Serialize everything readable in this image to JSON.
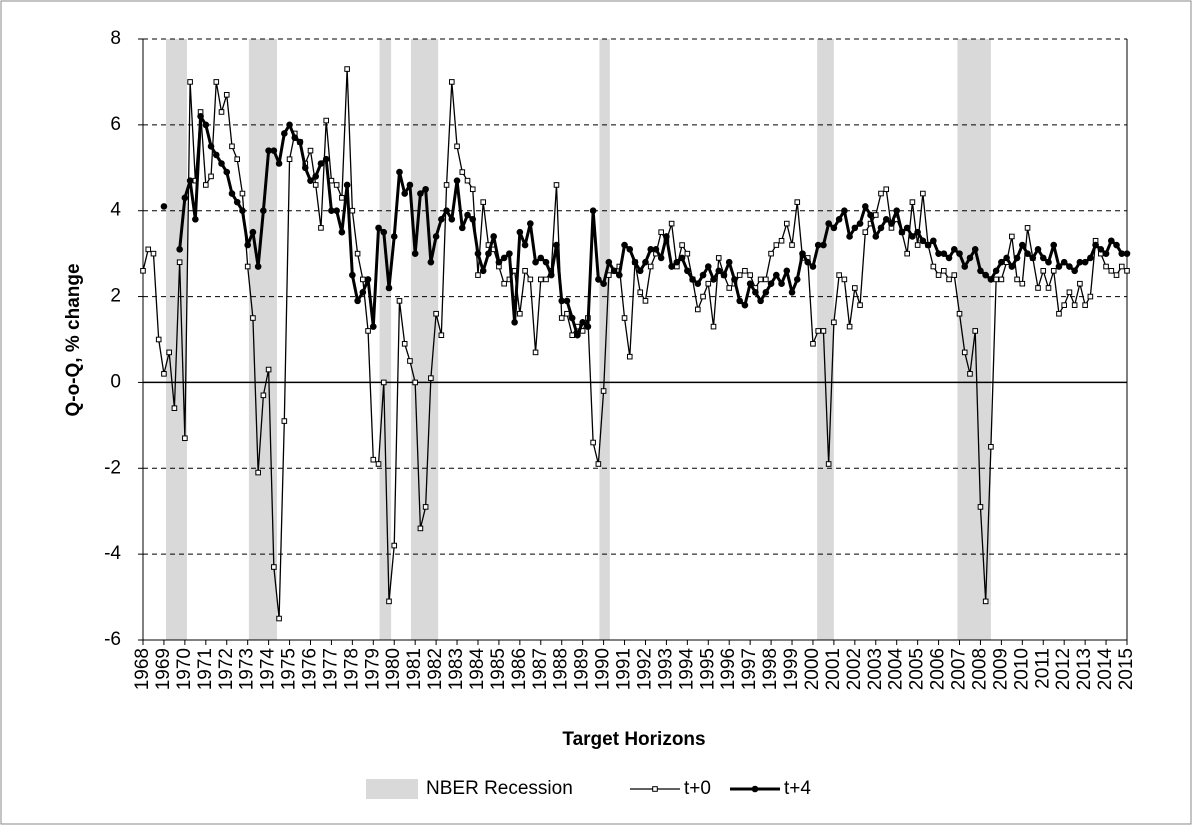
{
  "chart_data": {
    "type": "line",
    "ylabel": "Q-o-Q, % change",
    "xlabel": "Target Horizons",
    "xlim": [
      1968,
      2015
    ],
    "ylim": [
      -6,
      8
    ],
    "yticks": [
      -6,
      -4,
      -2,
      0,
      2,
      4,
      6,
      8
    ],
    "xticks": [
      1968,
      1969,
      1970,
      1971,
      1972,
      1973,
      1974,
      1975,
      1976,
      1977,
      1978,
      1979,
      1980,
      1981,
      1982,
      1983,
      1984,
      1985,
      1986,
      1987,
      1988,
      1989,
      1990,
      1991,
      1992,
      1993,
      1994,
      1995,
      1996,
      1997,
      1998,
      1999,
      2000,
      2001,
      2002,
      2003,
      2004,
      2005,
      2006,
      2007,
      2008,
      2009,
      2010,
      2011,
      2012,
      2013,
      2014,
      2015
    ],
    "grid": true,
    "legend": "bottom",
    "recessions": {
      "name": "NBER Recession",
      "color": "#d9d9d9",
      "ranges": [
        [
          1969.1,
          1970.1
        ],
        [
          1973.06,
          1974.4
        ],
        [
          1979.3,
          1979.85
        ],
        [
          1980.8,
          1982.1
        ],
        [
          1989.8,
          1990.3
        ],
        [
          2000.2,
          2001.0
        ],
        [
          2006.9,
          2008.5
        ]
      ]
    },
    "x": [
      1968,
      1968.25,
      1968.5,
      1968.75,
      1969,
      1969.25,
      1969.5,
      1969.75,
      1970,
      1970.25,
      1970.5,
      1970.75,
      1971,
      1971.25,
      1971.5,
      1971.75,
      1972,
      1972.25,
      1972.5,
      1972.75,
      1973,
      1973.25,
      1973.5,
      1973.75,
      1974,
      1974.25,
      1974.5,
      1974.75,
      1975,
      1975.25,
      1975.5,
      1975.75,
      1976,
      1976.25,
      1976.5,
      1976.75,
      1977,
      1977.25,
      1977.5,
      1977.75,
      1978,
      1978.25,
      1978.5,
      1978.75,
      1979,
      1979.25,
      1979.5,
      1979.75,
      1980,
      1980.25,
      1980.5,
      1980.75,
      1981,
      1981.25,
      1981.5,
      1981.75,
      1982,
      1982.25,
      1982.5,
      1982.75,
      1983,
      1983.25,
      1983.5,
      1983.75,
      1984,
      1984.25,
      1984.5,
      1984.75,
      1985,
      1985.25,
      1985.5,
      1985.75,
      1986,
      1986.25,
      1986.5,
      1986.75,
      1987,
      1987.25,
      1987.5,
      1987.75,
      1988,
      1988.25,
      1988.5,
      1988.75,
      1989,
      1989.25,
      1989.5,
      1989.75,
      1990,
      1990.25,
      1990.5,
      1990.75,
      1991,
      1991.25,
      1991.5,
      1991.75,
      1992,
      1992.25,
      1992.5,
      1992.75,
      1993,
      1993.25,
      1993.5,
      1993.75,
      1994,
      1994.25,
      1994.5,
      1994.75,
      1995,
      1995.25,
      1995.5,
      1995.75,
      1996,
      1996.25,
      1996.5,
      1996.75,
      1997,
      1997.25,
      1997.5,
      1997.75,
      1998,
      1998.25,
      1998.5,
      1998.75,
      1999,
      1999.25,
      1999.5,
      1999.75,
      2000,
      2000.25,
      2000.5,
      2000.75,
      2001,
      2001.25,
      2001.5,
      2001.75,
      2002,
      2002.25,
      2002.5,
      2002.75,
      2003,
      2003.25,
      2003.5,
      2003.75,
      2004,
      2004.25,
      2004.5,
      2004.75,
      2005,
      2005.25,
      2005.5,
      2005.75,
      2006,
      2006.25,
      2006.5,
      2006.75,
      2007,
      2007.25,
      2007.5,
      2007.75,
      2008,
      2008.25,
      2008.5,
      2008.75,
      2009,
      2009.25,
      2009.5,
      2009.75,
      2010,
      2010.25,
      2010.5,
      2010.75,
      2011,
      2011.25,
      2011.5,
      2011.75,
      2012,
      2012.25,
      2012.5,
      2012.75,
      2013,
      2013.25,
      2013.5,
      2013.75,
      2014,
      2014.25,
      2014.5,
      2014.75,
      2015
    ],
    "series": [
      {
        "name": "t+0",
        "color": "#000000",
        "marker": "square",
        "values": [
          2.6,
          3.1,
          3.0,
          1.0,
          0.2,
          0.7,
          -0.6,
          2.8,
          -1.3,
          7.0,
          4.7,
          6.3,
          4.6,
          4.8,
          7.0,
          6.3,
          6.7,
          5.5,
          5.2,
          4.4,
          2.7,
          1.5,
          -2.1,
          -0.3,
          0.3,
          -4.3,
          -5.5,
          -0.9,
          5.2,
          5.8,
          5.6,
          5.1,
          5.4,
          4.6,
          3.6,
          6.1,
          4.7,
          4.6,
          4.3,
          7.3,
          4.0,
          3.0,
          2.4,
          1.2,
          -1.8,
          -1.9,
          0.0,
          -5.1,
          -3.8,
          1.9,
          0.9,
          0.5,
          0.0,
          -3.4,
          -2.9,
          0.1,
          1.6,
          1.1,
          4.6,
          7.0,
          5.5,
          4.9,
          4.7,
          4.5,
          2.5,
          4.2,
          3.2,
          3.1,
          2.7,
          2.3,
          2.4,
          2.6,
          1.6,
          2.6,
          2.4,
          0.7,
          2.4,
          2.4,
          2.6,
          4.6,
          1.5,
          1.6,
          1.1,
          1.3,
          1.2,
          1.5,
          -1.4,
          -1.9,
          -0.2,
          2.5,
          2.6,
          2.7,
          1.5,
          0.6,
          2.8,
          2.1,
          1.9,
          2.7,
          3.0,
          3.5,
          3.3,
          3.7,
          2.7,
          3.2,
          3.0,
          2.4,
          1.7,
          2.0,
          2.3,
          1.3,
          2.9,
          2.5,
          2.2,
          2.3,
          2.5,
          2.6,
          2.5,
          2.2,
          2.4,
          2.4,
          3.0,
          3.2,
          3.3,
          3.7,
          3.2,
          4.2,
          2.9,
          2.9,
          0.9,
          1.2,
          1.2,
          -1.9,
          1.4,
          2.5,
          2.4,
          1.3,
          2.2,
          1.8,
          3.5,
          3.7,
          3.9,
          4.4,
          4.5,
          3.6,
          3.8,
          3.5,
          3.0,
          4.2,
          3.2,
          4.4,
          3.2,
          2.7,
          2.5,
          2.6,
          2.4,
          2.5,
          1.6,
          0.7,
          0.2,
          1.2,
          -2.9,
          -5.1,
          -1.5,
          2.4,
          2.4,
          2.8,
          3.4,
          2.4,
          2.3,
          3.6,
          2.9,
          2.2,
          2.6,
          2.2,
          2.6,
          1.6,
          1.8,
          2.1,
          1.8,
          2.3,
          1.8,
          2.0,
          3.3,
          3.0,
          2.7,
          2.6,
          2.5,
          2.7,
          2.6
        ]
      },
      {
        "name": "t+4",
        "color": "#000000",
        "marker": "circle",
        "values": [
          null,
          null,
          null,
          null,
          4.1,
          null,
          null,
          3.1,
          4.3,
          4.7,
          3.8,
          6.2,
          6.0,
          5.5,
          5.3,
          5.1,
          4.9,
          4.4,
          4.2,
          4.0,
          3.2,
          3.5,
          2.7,
          4.0,
          5.4,
          5.4,
          5.1,
          5.8,
          6.0,
          5.7,
          5.6,
          5.0,
          4.7,
          4.8,
          5.1,
          5.2,
          4.0,
          4.0,
          3.5,
          4.6,
          2.5,
          1.9,
          2.1,
          2.4,
          1.3,
          3.6,
          3.5,
          2.2,
          3.4,
          4.9,
          4.4,
          4.6,
          3.0,
          4.4,
          4.5,
          2.8,
          3.4,
          3.8,
          4.0,
          3.8,
          4.7,
          3.6,
          3.9,
          3.8,
          3.0,
          2.6,
          3.0,
          3.4,
          2.8,
          2.9,
          3.0,
          1.4,
          3.5,
          3.2,
          3.7,
          2.8,
          2.9,
          2.8,
          2.5,
          3.2,
          1.9,
          1.9,
          1.5,
          1.1,
          1.4,
          1.3,
          4.0,
          2.4,
          2.3,
          2.8,
          2.6,
          2.5,
          3.2,
          3.1,
          2.8,
          2.6,
          2.8,
          3.1,
          3.1,
          2.9,
          3.4,
          2.7,
          2.8,
          2.9,
          2.6,
          2.4,
          2.3,
          2.5,
          2.7,
          2.4,
          2.6,
          2.5,
          2.8,
          2.4,
          1.9,
          1.8,
          2.3,
          2.1,
          1.9,
          2.1,
          2.3,
          2.5,
          2.3,
          2.6,
          2.1,
          2.4,
          3.0,
          2.8,
          2.7,
          3.2,
          3.2,
          3.7,
          3.6,
          3.8,
          4.0,
          3.4,
          3.6,
          3.7,
          4.1,
          3.9,
          3.4,
          3.6,
          3.8,
          3.7,
          4.0,
          3.5,
          3.6,
          3.4,
          3.5,
          3.3,
          3.2,
          3.3,
          3.0,
          3.0,
          2.9,
          3.1,
          3.0,
          2.7,
          2.9,
          3.1,
          2.6,
          2.5,
          2.4,
          2.6,
          2.8,
          2.9,
          2.7,
          2.9,
          3.2,
          3.0,
          2.9,
          3.1,
          2.9,
          2.8,
          3.2,
          2.7,
          2.8,
          2.7,
          2.6,
          2.8,
          2.8,
          2.9,
          3.2,
          3.1,
          3.0,
          3.3,
          3.2,
          3.0,
          3.0
        ]
      }
    ]
  }
}
